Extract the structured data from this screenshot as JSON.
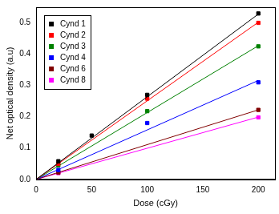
{
  "chart_data": {
    "type": "scatter",
    "x_label": "Dose (cGy)",
    "y_label": "Net optical density (a.u)",
    "xlim": [
      0,
      215
    ],
    "xticks": [
      0,
      50,
      100,
      150,
      200
    ],
    "ylim": [
      0,
      0.55
    ],
    "yticks": [
      {
        "value": 0,
        "label": "0.0"
      },
      {
        "value": 0.1,
        "label": "0.1"
      },
      {
        "value": 0.2,
        "label": "0.2"
      },
      {
        "value": 0.3,
        "label": "0.3"
      },
      {
        "value": 0.4,
        "label": "0.4"
      },
      {
        "value": 0.5,
        "label": "0.5"
      }
    ],
    "grid": false,
    "legend": "upper left",
    "marker": "square",
    "fit_x": [
      0,
      200
    ],
    "series": [
      {
        "name": "Cynd 1",
        "color": "#000000",
        "x": [
          20,
          50,
          100,
          200
        ],
        "values": [
          0.058,
          0.14,
          0.27,
          0.53
        ],
        "fit_values": [
          0,
          0.528
        ]
      },
      {
        "name": "Cynd 2",
        "color": "#ff0000",
        "x": [
          20,
          100,
          200
        ],
        "values": [
          0.05,
          0.258,
          0.5
        ],
        "fit_values": [
          0,
          0.502
        ]
      },
      {
        "name": "Cynd 3",
        "color": "#008000",
        "x": [
          20,
          100,
          200
        ],
        "values": [
          0.045,
          0.218,
          0.425
        ],
        "fit_values": [
          0,
          0.427
        ]
      },
      {
        "name": "Cynd 4",
        "color": "#0000ff",
        "x": [
          20,
          100,
          200
        ],
        "values": [
          0.03,
          0.18,
          0.31
        ],
        "fit_values": [
          0,
          0.316
        ]
      },
      {
        "name": "Cynd 6",
        "color": "#800000",
        "x": [
          20,
          200
        ],
        "values": [
          0.022,
          0.222
        ],
        "fit_values": [
          0,
          0.222
        ]
      },
      {
        "name": "Cynd 8",
        "color": "#ff00ff",
        "x": [
          20,
          200
        ],
        "values": [
          0.02,
          0.198
        ],
        "fit_values": [
          0,
          0.199
        ]
      }
    ]
  }
}
